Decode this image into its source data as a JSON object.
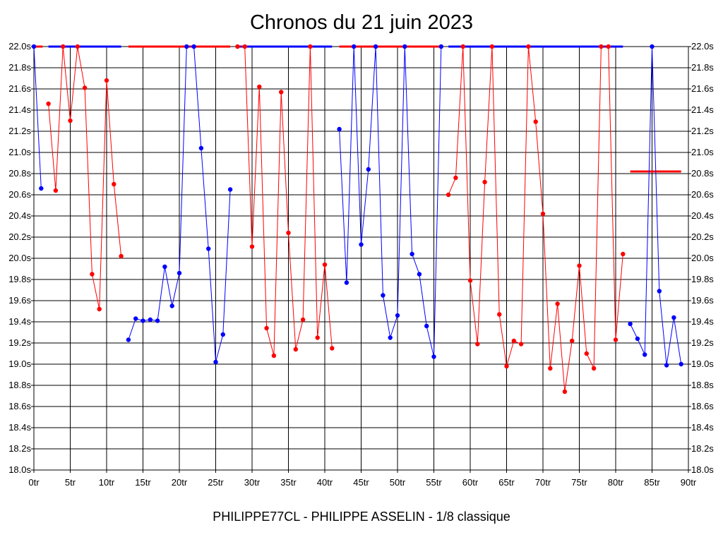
{
  "chart_data": {
    "type": "line",
    "title": "Chronos du 21 juin 2023",
    "subtitle": "PHILIPPE77CL - PHILIPPE ASSELIN - 1/8 classique",
    "xlabel": "",
    "ylabel": "",
    "xlim": [
      0,
      90
    ],
    "ylim": [
      18.0,
      22.0
    ],
    "grid": true,
    "x_ticks": [
      "0tr",
      "5tr",
      "10tr",
      "15tr",
      "20tr",
      "25tr",
      "30tr",
      "35tr",
      "40tr",
      "45tr",
      "50tr",
      "55tr",
      "60tr",
      "65tr",
      "70tr",
      "75tr",
      "80tr",
      "85tr",
      "90tr"
    ],
    "y_ticks": [
      "18.0s",
      "18.2s",
      "18.4s",
      "18.6s",
      "18.8s",
      "19.0s",
      "19.2s",
      "19.4s",
      "19.6s",
      "19.8s",
      "20.0s",
      "20.2s",
      "20.4s",
      "20.6s",
      "20.8s",
      "21.0s",
      "21.2s",
      "21.4s",
      "21.6s",
      "21.8s",
      "22.0s"
    ],
    "colors": {
      "blue": "#0000ff",
      "red": "#ff0000",
      "grid": "#000000"
    },
    "series": [
      {
        "color": "blue",
        "points": [
          [
            0,
            22.0
          ],
          [
            1,
            20.66
          ]
        ]
      },
      {
        "color": "red",
        "points": [
          [
            2,
            21.46
          ],
          [
            3,
            20.64
          ],
          [
            4,
            22.0
          ],
          [
            5,
            21.3
          ],
          [
            6,
            22.0
          ],
          [
            7,
            21.61
          ],
          [
            8,
            19.85
          ],
          [
            9,
            19.52
          ],
          [
            10,
            21.68
          ],
          [
            11,
            20.7
          ],
          [
            12,
            20.02
          ]
        ]
      },
      {
        "color": "blue",
        "points": [
          [
            13,
            19.23
          ],
          [
            14,
            19.43
          ],
          [
            15,
            19.41
          ],
          [
            16,
            19.42
          ],
          [
            17,
            19.41
          ],
          [
            18,
            19.92
          ],
          [
            19,
            19.55
          ],
          [
            20,
            19.86
          ],
          [
            21,
            22.0
          ],
          [
            22,
            22.0
          ],
          [
            23,
            21.04
          ],
          [
            24,
            20.09
          ],
          [
            25,
            19.02
          ],
          [
            26,
            19.28
          ],
          [
            27,
            20.65
          ]
        ]
      },
      {
        "color": "red",
        "points": [
          [
            28,
            22.0
          ],
          [
            29,
            22.0
          ],
          [
            30,
            20.11
          ],
          [
            31,
            21.62
          ],
          [
            32,
            19.34
          ],
          [
            33,
            19.08
          ],
          [
            34,
            21.57
          ],
          [
            35,
            20.24
          ],
          [
            36,
            19.14
          ],
          [
            37,
            19.42
          ],
          [
            38,
            22.0
          ],
          [
            39,
            19.25
          ],
          [
            40,
            19.94
          ],
          [
            41,
            19.15
          ]
        ]
      },
      {
        "color": "blue",
        "points": [
          [
            42,
            21.22
          ],
          [
            43,
            19.77
          ],
          [
            44,
            22.0
          ],
          [
            45,
            20.13
          ],
          [
            46,
            20.84
          ],
          [
            47,
            22.0
          ],
          [
            48,
            19.65
          ],
          [
            49,
            19.25
          ],
          [
            50,
            19.46
          ],
          [
            51,
            22.0
          ],
          [
            52,
            20.04
          ],
          [
            53,
            19.85
          ],
          [
            54,
            19.36
          ],
          [
            55,
            19.07
          ],
          [
            56,
            22.0
          ]
        ]
      },
      {
        "color": "red",
        "points": [
          [
            57,
            20.6
          ],
          [
            58,
            20.76
          ],
          [
            59,
            22.0
          ],
          [
            60,
            19.79
          ],
          [
            61,
            19.19
          ],
          [
            62,
            20.72
          ],
          [
            63,
            22.0
          ],
          [
            64,
            19.47
          ],
          [
            65,
            18.98
          ],
          [
            66,
            19.22
          ],
          [
            67,
            19.19
          ],
          [
            68,
            22.0
          ],
          [
            69,
            21.29
          ],
          [
            70,
            20.42
          ],
          [
            71,
            18.96
          ],
          [
            72,
            19.57
          ],
          [
            73,
            18.74
          ],
          [
            74,
            19.22
          ],
          [
            75,
            19.93
          ],
          [
            76,
            19.1
          ],
          [
            77,
            18.96
          ],
          [
            78,
            22.0
          ],
          [
            79,
            22.0
          ],
          [
            80,
            19.23
          ],
          [
            81,
            20.04
          ]
        ]
      },
      {
        "color": "blue",
        "points": [
          [
            82,
            19.38
          ],
          [
            83,
            19.24
          ],
          [
            84,
            19.09
          ],
          [
            85,
            22.0
          ],
          [
            86,
            19.69
          ],
          [
            87,
            18.99
          ],
          [
            88,
            19.44
          ],
          [
            89,
            19.0
          ]
        ]
      }
    ],
    "segments": [
      {
        "color": "red",
        "x": [
          0,
          1.2
        ],
        "y": 22.0
      },
      {
        "color": "blue",
        "x": [
          2,
          12
        ],
        "y": 22.0
      },
      {
        "color": "red",
        "x": [
          13,
          27
        ],
        "y": 22.0
      },
      {
        "color": "blue",
        "x": [
          28,
          41
        ],
        "y": 22.0
      },
      {
        "color": "red",
        "x": [
          42,
          56
        ],
        "y": 22.0
      },
      {
        "color": "blue",
        "x": [
          57,
          81
        ],
        "y": 22.0
      },
      {
        "color": "red",
        "x": [
          82,
          89
        ],
        "y": 20.82
      }
    ]
  }
}
